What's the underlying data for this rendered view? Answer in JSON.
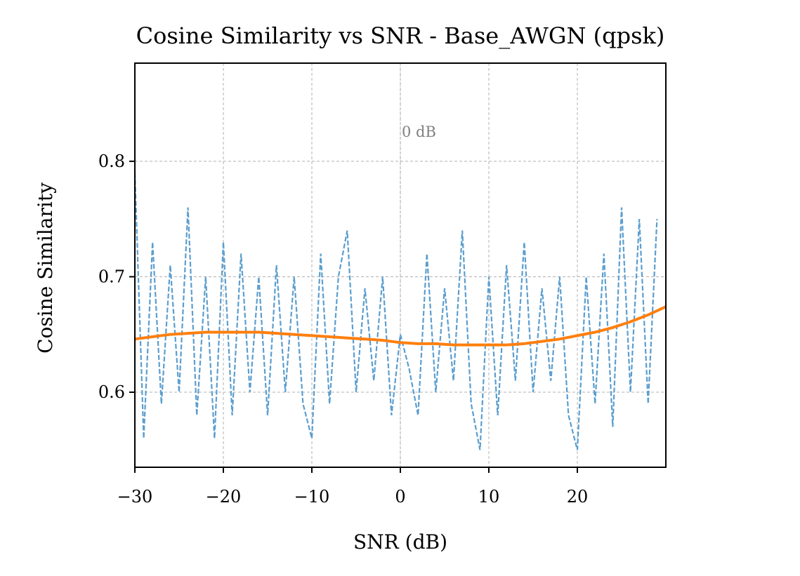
{
  "chart_data": {
    "type": "line",
    "title": "Cosine Similarity vs SNR - Base_AWGN (qpsk)",
    "xlabel": "SNR (dB)",
    "ylabel": "Cosine Similarity",
    "xlim": [
      -30,
      30
    ],
    "ylim": [
      0.535,
      0.885
    ],
    "xticks": [
      -30,
      -20,
      -10,
      0,
      10,
      20
    ],
    "xtick_labels": [
      "−30",
      "−20",
      "−10",
      "0",
      "10",
      "20"
    ],
    "yticks": [
      0.6,
      0.7,
      0.8
    ],
    "ytick_labels": [
      "0.6",
      "0.7",
      "0.8"
    ],
    "grid": true,
    "legend": "none",
    "annotations": [
      {
        "text": "0 dB",
        "x": 0,
        "y": 0.826
      }
    ],
    "vline_x": 0,
    "series": [
      {
        "style": "dashed",
        "color": "#5b9ecf",
        "x": [
          -30,
          -29,
          -28,
          -27,
          -26,
          -25,
          -24,
          -23,
          -22,
          -21,
          -20,
          -19,
          -18,
          -17,
          -16,
          -15,
          -14,
          -13,
          -12,
          -11,
          -10,
          -9,
          -8,
          -7,
          -6,
          -5,
          -4,
          -3,
          -2,
          -1,
          0,
          1,
          2,
          3,
          4,
          5,
          6,
          7,
          8,
          9,
          10,
          11,
          12,
          13,
          14,
          15,
          16,
          17,
          18,
          19,
          20,
          21,
          22,
          23,
          24,
          25,
          26,
          27,
          28,
          29
        ],
        "y": [
          0.79,
          0.56,
          0.73,
          0.59,
          0.71,
          0.6,
          0.76,
          0.58,
          0.7,
          0.56,
          0.73,
          0.58,
          0.72,
          0.6,
          0.7,
          0.58,
          0.71,
          0.6,
          0.7,
          0.59,
          0.56,
          0.72,
          0.59,
          0.7,
          0.74,
          0.6,
          0.69,
          0.61,
          0.7,
          0.58,
          0.65,
          0.62,
          0.58,
          0.72,
          0.6,
          0.69,
          0.61,
          0.74,
          0.59,
          0.55,
          0.7,
          0.58,
          0.71,
          0.61,
          0.73,
          0.6,
          0.69,
          0.61,
          0.7,
          0.58,
          0.55,
          0.7,
          0.59,
          0.72,
          0.57,
          0.76,
          0.6,
          0.75,
          0.59,
          0.75
        ]
      },
      {
        "style": "solid",
        "color": "#ff7f0e",
        "x": [
          -30,
          -28,
          -26,
          -24,
          -22,
          -20,
          -18,
          -16,
          -14,
          -12,
          -10,
          -8,
          -6,
          -4,
          -2,
          0,
          2,
          4,
          6,
          8,
          10,
          12,
          14,
          16,
          18,
          20,
          22,
          24,
          26,
          28,
          30
        ],
        "y": [
          0.646,
          0.648,
          0.65,
          0.651,
          0.652,
          0.652,
          0.652,
          0.652,
          0.651,
          0.65,
          0.649,
          0.648,
          0.647,
          0.646,
          0.645,
          0.643,
          0.642,
          0.642,
          0.641,
          0.641,
          0.641,
          0.641,
          0.642,
          0.644,
          0.646,
          0.649,
          0.652,
          0.656,
          0.661,
          0.667,
          0.674
        ]
      }
    ]
  }
}
